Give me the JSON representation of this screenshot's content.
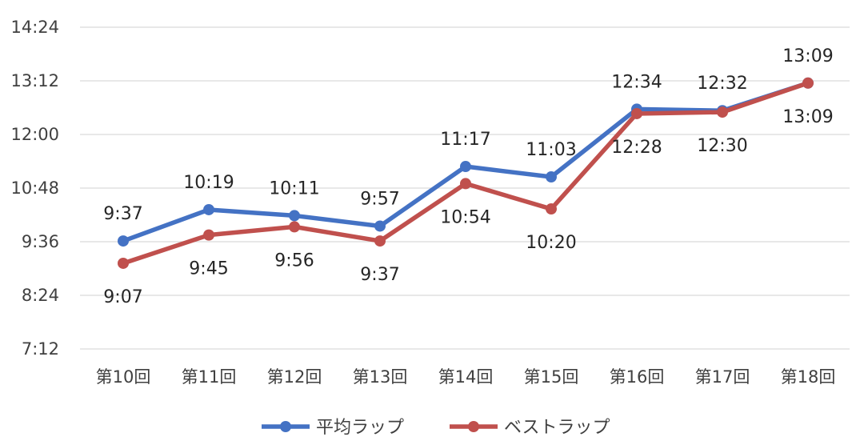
{
  "chart_data": {
    "type": "line",
    "categories": [
      "第10回",
      "第11回",
      "第12回",
      "第13回",
      "第14回",
      "第15回",
      "第16回",
      "第17回",
      "第18回"
    ],
    "y_tick_labels": [
      "7:12",
      "8:24",
      "9:36",
      "10:48",
      "12:00",
      "13:12",
      "14:24"
    ],
    "ylim_minutes": [
      432,
      864
    ],
    "grid": true,
    "legend_position": "bottom",
    "series": [
      {
        "name": "平均ラップ",
        "color": "#4472C4",
        "values_minutes": [
          577,
          619,
          611,
          597,
          677,
          663,
          754,
          752,
          789
        ],
        "labels": [
          "9:37",
          "10:19",
          "10:11",
          "9:57",
          "11:17",
          "11:03",
          "12:34",
          "12:32",
          "13:09"
        ],
        "label_position": "above"
      },
      {
        "name": "ベストラップ",
        "color": "#C0504D",
        "values_minutes": [
          547,
          585,
          596,
          577,
          654,
          620,
          748,
          750,
          789
        ],
        "labels": [
          "9:07",
          "9:45",
          "9:56",
          "9:37",
          "10:54",
          "10:20",
          "12:28",
          "12:30",
          "13:09"
        ],
        "label_position": "below"
      }
    ]
  }
}
